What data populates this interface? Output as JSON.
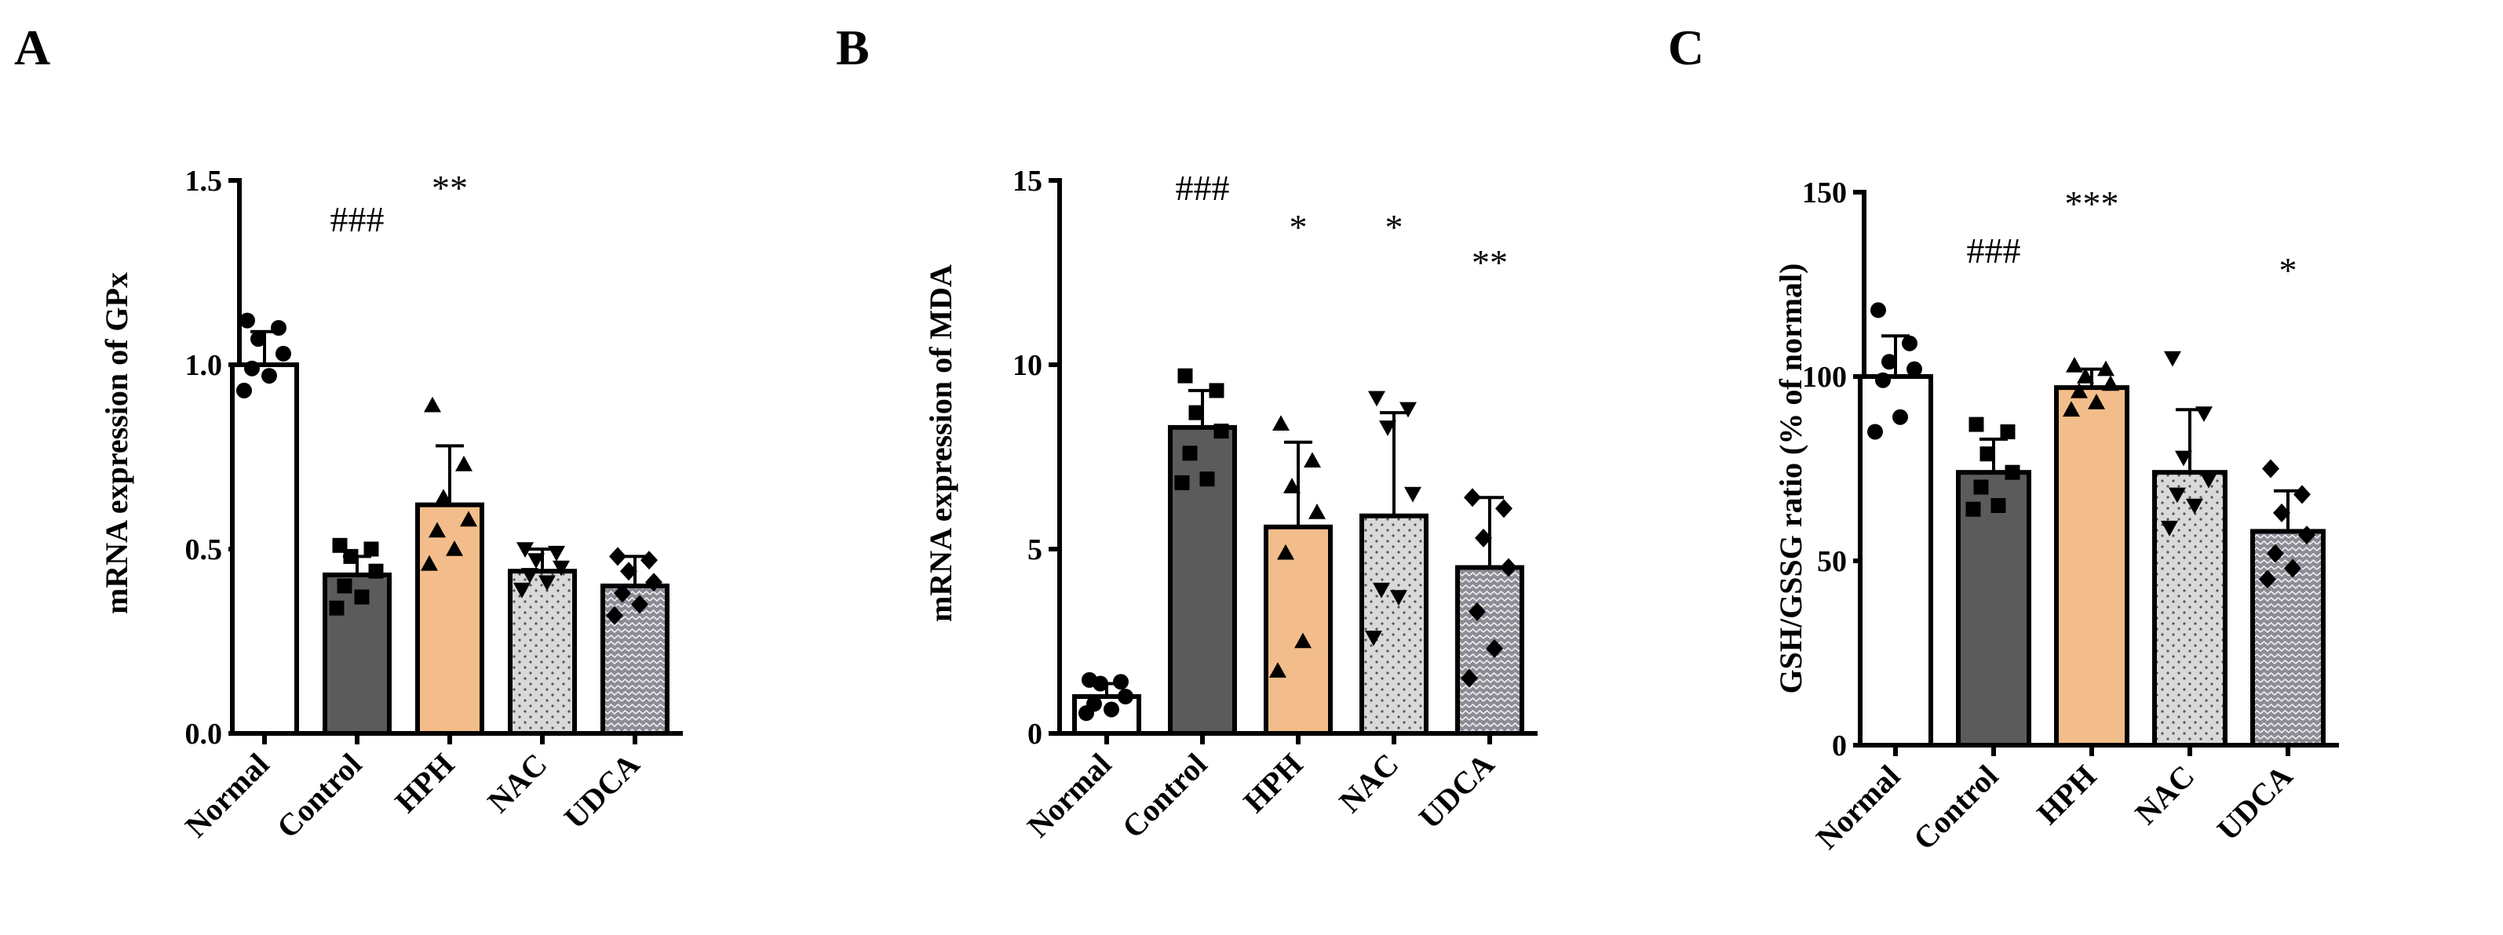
{
  "chart_data": [
    {
      "type": "bar",
      "panel": "A",
      "ylabel": "mRNA expression of GPx",
      "ylim": [
        0,
        1.5
      ],
      "yticks": [
        0,
        0.5,
        1.0,
        1.5
      ],
      "ytick_labels": [
        "0.0",
        "0.5",
        "1.0",
        "1.5"
      ],
      "categories": [
        "Normal",
        "Control",
        "HPH",
        "NAC",
        "UDCA"
      ],
      "means": [
        1.0,
        0.43,
        0.62,
        0.44,
        0.4
      ],
      "sd": [
        0.09,
        0.05,
        0.16,
        0.06,
        0.08
      ],
      "annotations": [
        "",
        "###",
        "**",
        "",
        ""
      ],
      "points": [
        [
          1.12,
          1.1,
          1.07,
          1.03,
          0.99,
          0.97,
          0.93
        ],
        [
          0.51,
          0.5,
          0.48,
          0.44,
          0.4,
          0.37,
          0.34
        ],
        [
          0.89,
          0.73,
          0.64,
          0.58,
          0.55,
          0.5,
          0.46
        ],
        [
          0.5,
          0.49,
          0.47,
          0.45,
          0.43,
          0.41,
          0.39
        ],
        [
          0.48,
          0.47,
          0.44,
          0.41,
          0.38,
          0.35,
          0.32
        ]
      ]
    },
    {
      "type": "bar",
      "panel": "B",
      "ylabel": "mRNA expression of MDA",
      "ylim": [
        0,
        15
      ],
      "yticks": [
        0,
        5,
        10,
        15
      ],
      "ytick_labels": [
        "0",
        "5",
        "10",
        "15"
      ],
      "categories": [
        "Normal",
        "Control",
        "HPH",
        "NAC",
        "UDCA"
      ],
      "means": [
        1.0,
        8.3,
        5.6,
        5.9,
        4.5
      ],
      "sd": [
        0.35,
        1.0,
        2.3,
        2.8,
        1.9
      ],
      "annotations": [
        "",
        "###",
        "*",
        "*",
        "**"
      ],
      "points": [
        [
          1.45,
          1.4,
          1.35,
          1.0,
          0.8,
          0.65,
          0.55
        ],
        [
          9.7,
          9.3,
          8.7,
          8.2,
          7.6,
          6.9,
          6.8
        ],
        [
          8.4,
          7.4,
          6.7,
          6.0,
          4.9,
          2.5,
          1.7
        ],
        [
          9.1,
          8.8,
          8.3,
          6.5,
          3.9,
          3.7,
          2.6
        ],
        [
          6.4,
          6.1,
          5.3,
          4.5,
          3.3,
          2.3,
          1.5
        ]
      ]
    },
    {
      "type": "bar",
      "panel": "C",
      "ylabel": "GSH/GSSG ratio (% of normal)",
      "ylim": [
        0,
        150
      ],
      "yticks": [
        0,
        50,
        100,
        150
      ],
      "ytick_labels": [
        "0",
        "50",
        "100",
        "150"
      ],
      "categories": [
        "Normal",
        "Control",
        "HPH",
        "NAC",
        "UDCA"
      ],
      "means": [
        100,
        74,
        97,
        74,
        58
      ],
      "sd": [
        11,
        9,
        5,
        17,
        11
      ],
      "annotations": [
        "",
        "###",
        "***",
        "",
        "*"
      ],
      "points": [
        [
          118,
          109,
          104,
          102,
          99,
          89,
          85
        ],
        [
          87,
          85,
          79,
          74,
          70,
          65,
          64
        ],
        [
          103,
          102,
          100,
          98,
          96,
          93,
          91
        ],
        [
          105,
          90,
          78,
          72,
          68,
          65,
          59
        ],
        [
          75,
          68,
          63,
          57,
          52,
          48,
          45
        ]
      ]
    }
  ],
  "bar_fills": [
    "#ffffff",
    "#5b5b5b",
    "#f2bd8a",
    "#d9d9d9",
    "#8c8c96"
  ],
  "bar_patterns": [
    "none",
    "none",
    "none",
    "dots",
    "waves"
  ],
  "marker_shapes": [
    "circle",
    "square",
    "triangle-up",
    "triangle-down",
    "diamond"
  ]
}
